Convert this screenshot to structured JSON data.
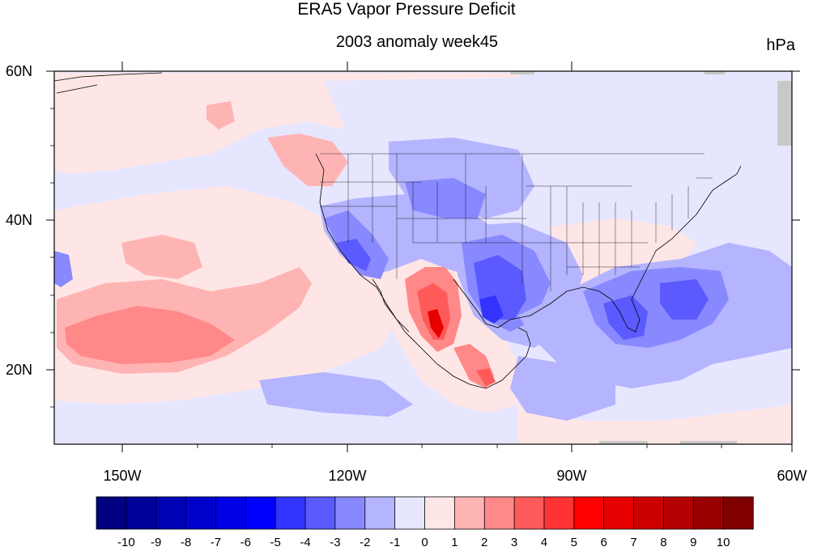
{
  "title": "ERA5 Vapor Pressure Deficit",
  "subtitle": "2003 anomaly week45",
  "units": "hPa",
  "map": {
    "projection": "cylindrical-equidistant",
    "lon_range": [
      -159,
      -60
    ],
    "lat_range": [
      10,
      60
    ],
    "lat_labels": [
      "60N",
      "40N",
      "20N"
    ],
    "lon_labels": [
      "150W",
      "120W",
      "90W",
      "60W"
    ],
    "features": [
      "coastlines",
      "US state boundaries",
      "country boundaries"
    ],
    "anomaly_regions": [
      {
        "area": "Northeast Pacific (near Hawaii)",
        "sign": "positive",
        "peak": 4
      },
      {
        "area": "Northwest Mexico / Sierra Madre",
        "sign": "positive",
        "peak": 9
      },
      {
        "area": "Southern Mexico",
        "sign": "positive",
        "peak": 6
      },
      {
        "area": "Texas / Gulf Coast",
        "sign": "negative",
        "peak": -6
      },
      {
        "area": "Florida / Western Atlantic",
        "sign": "negative",
        "peak": -5
      },
      {
        "area": "Southern California / Arizona",
        "sign": "negative",
        "peak": -5
      },
      {
        "area": "Northern Plains",
        "sign": "negative",
        "peak": -3
      },
      {
        "area": "Pacific Northwest coast",
        "sign": "positive",
        "peak": 2
      }
    ]
  },
  "colorbar": {
    "labels": [
      "-10",
      "-9",
      "-8",
      "-7",
      "-6",
      "-5",
      "-4",
      "-3",
      "-2",
      "-1",
      "0",
      "1",
      "2",
      "3",
      "4",
      "5",
      "6",
      "7",
      "8",
      "9",
      "10"
    ],
    "colors": [
      "#000080",
      "#00009a",
      "#0000b4",
      "#0000cd",
      "#0000e6",
      "#0000ff",
      "#3333ff",
      "#5a5aff",
      "#8888ff",
      "#b4b4ff",
      "#e6e6ff",
      "#ffe6e6",
      "#ffb4b4",
      "#ff8888",
      "#ff5a5a",
      "#ff3333",
      "#ff0000",
      "#e60000",
      "#cd0000",
      "#b40000",
      "#9a0000",
      "#800000"
    ]
  }
}
